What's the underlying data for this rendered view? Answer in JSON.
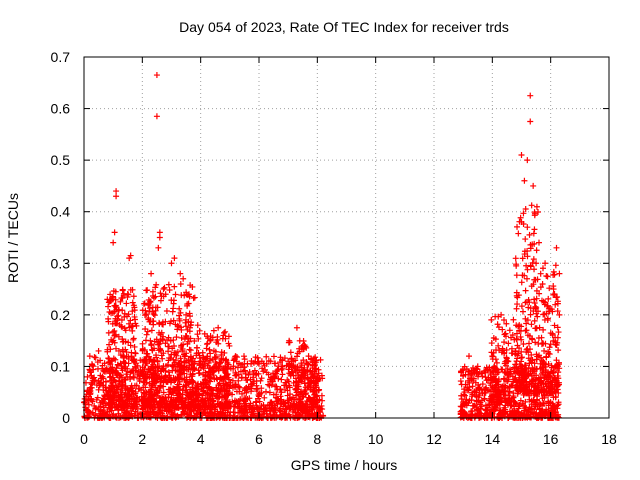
{
  "chart_data": {
    "type": "scatter",
    "title": "Day 054 of 2023, Rate Of TEC Index for receiver trds",
    "xlabel": "GPS time / hours",
    "ylabel": "ROTI / TECUs",
    "xlim": [
      0,
      18
    ],
    "ylim": [
      0,
      0.7
    ],
    "xticks": [
      0,
      2,
      4,
      6,
      8,
      10,
      12,
      14,
      16,
      18
    ],
    "yticks": [
      0,
      0.1,
      0.2,
      0.3,
      0.4,
      0.5,
      0.6,
      0.7
    ],
    "xtick_labels": [
      "0",
      "2",
      "4",
      "6",
      "8",
      "10",
      "12",
      "14",
      "16",
      "18"
    ],
    "ytick_labels": [
      "0",
      "0.1",
      "0.2",
      "0.3",
      "0.4",
      "0.5",
      "0.6",
      "0.7"
    ],
    "grid": true,
    "marker": "+",
    "color": "#ff0000",
    "series": [
      {
        "name": "ROTI",
        "points": [
          [
            2.5,
            0.665
          ],
          [
            2.5,
            0.585
          ],
          [
            1.1,
            0.44
          ],
          [
            1.1,
            0.43
          ],
          [
            1.05,
            0.36
          ],
          [
            1.0,
            0.34
          ],
          [
            1.6,
            0.315
          ],
          [
            1.55,
            0.31
          ],
          [
            2.6,
            0.36
          ],
          [
            2.6,
            0.35
          ],
          [
            2.55,
            0.33
          ],
          [
            2.3,
            0.28
          ],
          [
            3.1,
            0.31
          ],
          [
            3.0,
            0.3
          ],
          [
            3.3,
            0.28
          ],
          [
            3.4,
            0.27
          ],
          [
            3.6,
            0.24
          ],
          [
            0.8,
            0.23
          ],
          [
            1.2,
            0.21
          ],
          [
            1.3,
            0.19
          ],
          [
            2.2,
            0.22
          ],
          [
            2.8,
            0.24
          ],
          [
            3.5,
            0.2
          ],
          [
            3.9,
            0.18
          ],
          [
            4.6,
            0.175
          ],
          [
            4.8,
            0.165
          ],
          [
            7.3,
            0.175
          ],
          [
            7.5,
            0.14
          ],
          [
            7.7,
            0.12
          ],
          [
            5.2,
            0.12
          ],
          [
            6.0,
            0.105
          ],
          [
            6.4,
            0.11
          ],
          [
            6.8,
            0.1
          ],
          [
            7.0,
            0.11
          ],
          [
            0.2,
            0.12
          ],
          [
            0.5,
            0.13
          ],
          [
            15.3,
            0.625
          ],
          [
            15.3,
            0.575
          ],
          [
            15.0,
            0.51
          ],
          [
            15.2,
            0.5
          ],
          [
            15.1,
            0.46
          ],
          [
            15.4,
            0.45
          ],
          [
            15.0,
            0.38
          ],
          [
            15.2,
            0.37
          ],
          [
            15.6,
            0.34
          ],
          [
            15.5,
            0.3
          ],
          [
            16.2,
            0.33
          ],
          [
            16.3,
            0.28
          ],
          [
            16.1,
            0.25
          ],
          [
            14.3,
            0.2
          ],
          [
            14.4,
            0.19
          ],
          [
            14.6,
            0.17
          ],
          [
            14.2,
            0.14
          ],
          [
            14.0,
            0.12
          ],
          [
            13.2,
            0.12
          ],
          [
            13.5,
            0.1
          ],
          [
            15.8,
            0.22
          ],
          [
            15.9,
            0.19
          ],
          [
            16.3,
            0.2
          ],
          [
            14.8,
            0.13
          ]
        ],
        "clusters": [
          {
            "x_range": [
              0.0,
              8.2
            ],
            "y_range": [
              0.0,
              0.12
            ],
            "count": 1500
          },
          {
            "x_range": [
              0.8,
              1.8
            ],
            "y_range": [
              0.02,
              0.25
            ],
            "count": 260
          },
          {
            "x_range": [
              2.0,
              3.8
            ],
            "y_range": [
              0.02,
              0.26
            ],
            "count": 460
          },
          {
            "x_range": [
              3.8,
              5.0
            ],
            "y_range": [
              0.02,
              0.17
            ],
            "count": 200
          },
          {
            "x_range": [
              7.0,
              8.0
            ],
            "y_range": [
              0.02,
              0.15
            ],
            "count": 120
          },
          {
            "x_range": [
              12.9,
              16.3
            ],
            "y_range": [
              0.0,
              0.1
            ],
            "count": 650
          },
          {
            "x_range": [
              13.9,
              14.8
            ],
            "y_range": [
              0.03,
              0.2
            ],
            "count": 120
          },
          {
            "x_range": [
              14.8,
              15.6
            ],
            "y_range": [
              0.05,
              0.42
            ],
            "count": 220
          },
          {
            "x_range": [
              15.6,
              16.3
            ],
            "y_range": [
              0.05,
              0.3
            ],
            "count": 150
          }
        ]
      }
    ]
  }
}
